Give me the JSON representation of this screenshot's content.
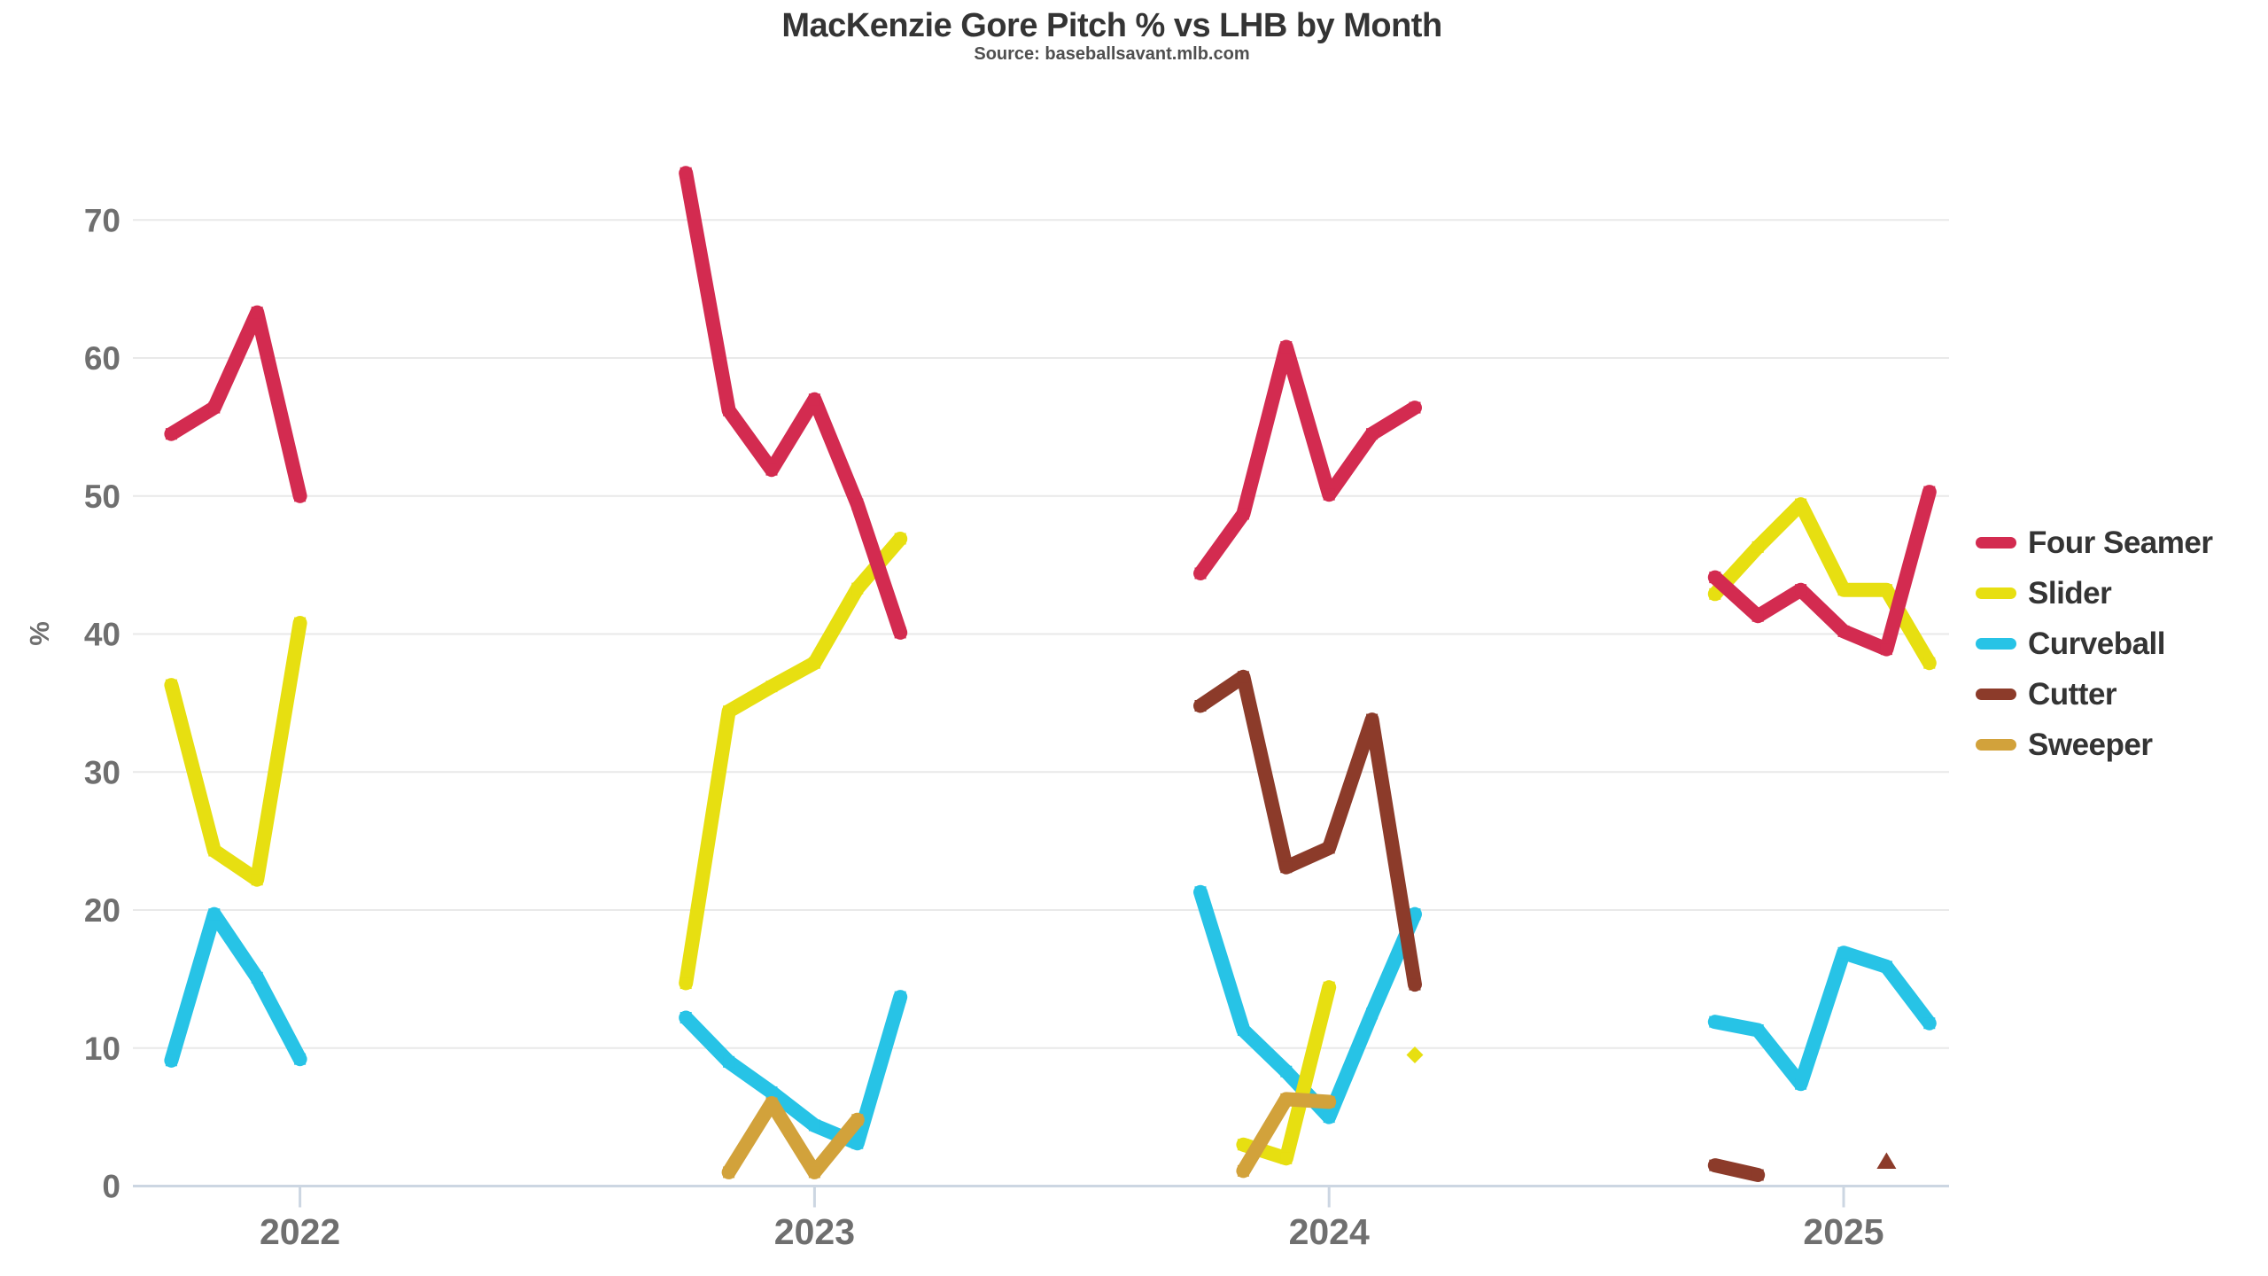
{
  "title": "MacKenzie Gore Pitch % vs LHB by Month",
  "subtitle": "Source: baseballsavant.mlb.com",
  "colors": {
    "four_seamer": "#d32b50",
    "slider": "#e7df11",
    "curveball": "#27c3e6",
    "cutter": "#8c3b2a",
    "sweeper": "#d2a23b",
    "gridline": "#e9e9e9",
    "axis_line": "#ccd6e2",
    "tick_label": "#6f6f6f",
    "title_text": "#343434",
    "subtitle_text": "#4f4f4f"
  },
  "chart_data": {
    "type": "line",
    "title": "MacKenzie Gore Pitch % vs LHB by Month",
    "subtitle": "Source: baseballsavant.mlb.com",
    "xlabel": "",
    "ylabel": "%",
    "ylim": [
      0,
      75
    ],
    "y_ticks": [
      0,
      10,
      20,
      30,
      40,
      50,
      60,
      70
    ],
    "x_tick_labels": [
      "2022",
      "2023",
      "2024",
      "2025"
    ],
    "x_note": "monthly points (Apr-Sep per season); year tick marks align with July of each season; gaps between seasons",
    "grid": "horizontal",
    "legend_position": "right",
    "series": [
      {
        "name": "Four Seamer",
        "color": "#d32b50",
        "isolated_marker": "circle",
        "points": [
          [
            2022,
            4,
            54.5
          ],
          [
            2022,
            5,
            56.4
          ],
          [
            2022,
            6,
            63.3
          ],
          [
            2022,
            7,
            50.0
          ],
          [
            2023,
            4,
            73.4
          ],
          [
            2023,
            5,
            56.2
          ],
          [
            2023,
            6,
            51.9
          ],
          [
            2023,
            7,
            57.0
          ],
          [
            2023,
            8,
            49.4
          ],
          [
            2023,
            9,
            40.1
          ],
          [
            2024,
            4,
            44.4
          ],
          [
            2024,
            5,
            48.7
          ],
          [
            2024,
            6,
            60.8
          ],
          [
            2024,
            7,
            50.1
          ],
          [
            2024,
            8,
            54.5
          ],
          [
            2024,
            9,
            56.4
          ],
          [
            2025,
            4,
            44.1
          ],
          [
            2025,
            5,
            41.3
          ],
          [
            2025,
            6,
            43.2
          ],
          [
            2025,
            7,
            40.2
          ],
          [
            2025,
            8,
            38.9
          ],
          [
            2025,
            9,
            50.3
          ]
        ]
      },
      {
        "name": "Slider",
        "color": "#e7df11",
        "isolated_marker": "diamond",
        "points": [
          [
            2022,
            4,
            36.3
          ],
          [
            2022,
            5,
            24.3
          ],
          [
            2022,
            6,
            22.2
          ],
          [
            2022,
            7,
            40.8
          ],
          [
            2023,
            4,
            14.7
          ],
          [
            2023,
            5,
            34.4
          ],
          [
            2023,
            6,
            36.2
          ],
          [
            2023,
            7,
            37.9
          ],
          [
            2023,
            8,
            43.3
          ],
          [
            2023,
            9,
            46.9
          ],
          [
            2024,
            5,
            3.0
          ],
          [
            2024,
            6,
            2.0
          ],
          [
            2024,
            7,
            14.4
          ],
          [
            2024,
            9,
            9.5
          ],
          [
            2025,
            4,
            42.9
          ],
          [
            2025,
            5,
            46.3
          ],
          [
            2025,
            6,
            49.4
          ],
          [
            2025,
            7,
            43.2
          ],
          [
            2025,
            8,
            43.2
          ],
          [
            2025,
            9,
            37.9
          ]
        ]
      },
      {
        "name": "Curveball",
        "color": "#27c3e6",
        "isolated_marker": "circle",
        "points": [
          [
            2022,
            4,
            9.1
          ],
          [
            2022,
            5,
            19.7
          ],
          [
            2022,
            6,
            15.1
          ],
          [
            2022,
            7,
            9.2
          ],
          [
            2023,
            4,
            12.2
          ],
          [
            2023,
            5,
            9.0
          ],
          [
            2023,
            6,
            6.8
          ],
          [
            2023,
            7,
            4.4
          ],
          [
            2023,
            8,
            3.1
          ],
          [
            2023,
            9,
            13.7
          ],
          [
            2024,
            4,
            21.3
          ],
          [
            2024,
            5,
            11.3
          ],
          [
            2024,
            6,
            8.3
          ],
          [
            2024,
            7,
            5.0
          ],
          [
            2024,
            8,
            12.5
          ],
          [
            2024,
            9,
            19.7
          ],
          [
            2025,
            4,
            11.9
          ],
          [
            2025,
            5,
            11.3
          ],
          [
            2025,
            6,
            7.4
          ],
          [
            2025,
            7,
            16.9
          ],
          [
            2025,
            8,
            15.9
          ],
          [
            2025,
            9,
            11.8
          ]
        ]
      },
      {
        "name": "Cutter",
        "color": "#8c3b2a",
        "isolated_marker": "triangle-up",
        "points": [
          [
            2024,
            4,
            34.8
          ],
          [
            2024,
            5,
            36.9
          ],
          [
            2024,
            6,
            23.1
          ],
          [
            2024,
            7,
            24.5
          ],
          [
            2024,
            8,
            33.8
          ],
          [
            2024,
            9,
            14.6
          ],
          [
            2025,
            4,
            1.5
          ],
          [
            2025,
            5,
            0.8
          ],
          [
            2025,
            8,
            1.8
          ]
        ]
      },
      {
        "name": "Sweeper",
        "color": "#d2a23b",
        "isolated_marker": "circle",
        "points": [
          [
            2023,
            5,
            1.0
          ],
          [
            2023,
            6,
            6.0
          ],
          [
            2023,
            7,
            1.0
          ],
          [
            2023,
            8,
            4.8
          ],
          [
            2024,
            5,
            1.1
          ],
          [
            2024,
            6,
            6.3
          ],
          [
            2024,
            7,
            6.1
          ]
        ]
      }
    ]
  },
  "legend": {
    "items": [
      {
        "label": "Four Seamer"
      },
      {
        "label": "Slider"
      },
      {
        "label": "Curveball"
      },
      {
        "label": "Cutter"
      },
      {
        "label": "Sweeper"
      }
    ]
  }
}
